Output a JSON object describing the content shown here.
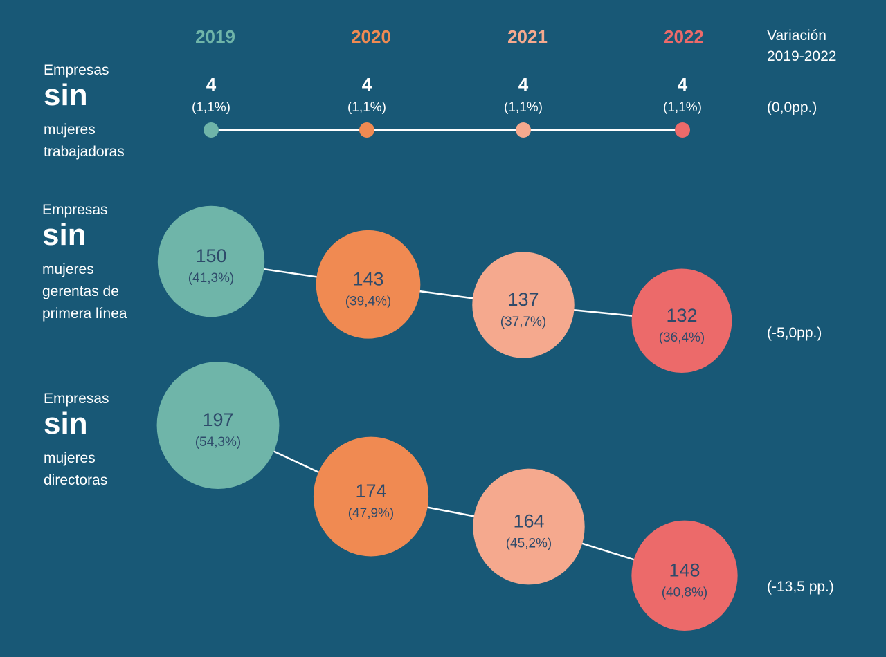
{
  "chart_data": {
    "type": "bubble-timeline",
    "title": "",
    "years": [
      "2019",
      "2020",
      "2021",
      "2022"
    ],
    "year_colors": [
      "#6fb5a9",
      "#f08a52",
      "#f5a98e",
      "#ec6a6a"
    ],
    "variation_header": [
      "Variación",
      "2019-2022"
    ],
    "series": [
      {
        "name": "Empresas sin mujeres trabajadoras",
        "label_lines": [
          "Empresas",
          "sin",
          "mujeres",
          "trabajadoras"
        ],
        "values": [
          4,
          4,
          4,
          4
        ],
        "value_labels": [
          "4",
          "4",
          "4",
          "4"
        ],
        "percent_labels": [
          "(1,1%)",
          "(1,1%)",
          "(1,1%)",
          "(1,1%)"
        ],
        "percents": [
          1.1,
          1.1,
          1.1,
          1.1
        ],
        "variation": "(0,0pp.)"
      },
      {
        "name": "Empresas sin mujeres gerentas de primera línea",
        "label_lines": [
          "Empresas",
          "sin",
          "mujeres",
          "gerentas de",
          "primera línea"
        ],
        "values": [
          150,
          143,
          137,
          132
        ],
        "value_labels": [
          "150",
          "143",
          "137",
          "132"
        ],
        "percent_labels": [
          "(41,3%)",
          "(39,4%)",
          "(37,7%)",
          "(36,4%)"
        ],
        "percents": [
          41.3,
          39.4,
          37.7,
          36.4
        ],
        "variation": "(-5,0pp.)"
      },
      {
        "name": "Empresas sin mujeres directoras",
        "label_lines": [
          "Empresas",
          "sin",
          "mujeres",
          "directoras"
        ],
        "values": [
          197,
          174,
          164,
          148
        ],
        "value_labels": [
          "197",
          "174",
          "164",
          "148"
        ],
        "percent_labels": [
          "(54,3%)",
          "(47,9%)",
          "(45,2%)",
          "(40,8%)"
        ],
        "percents": [
          54.3,
          47.9,
          45.2,
          40.8
        ],
        "variation": "(-13,5 pp.)"
      }
    ]
  }
}
